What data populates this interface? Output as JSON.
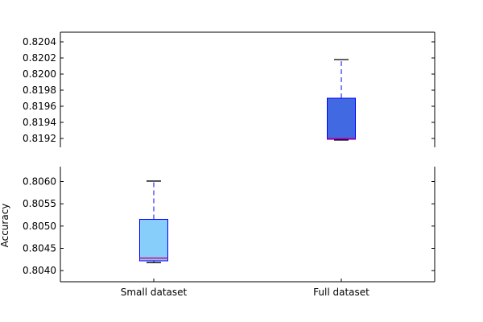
{
  "chart_data": {
    "type": "box",
    "layout": "broken-axis",
    "categories": [
      "Small dataset",
      "Full dataset"
    ],
    "ylabel": "Accuracy",
    "grid": false,
    "panels": [
      {
        "name": "top",
        "ylim": [
          0.81912,
          0.82052
        ],
        "yticks": [
          0.8192,
          0.8194,
          0.8196,
          0.8198,
          0.82,
          0.8202,
          0.8204
        ],
        "ytick_labels": [
          "0.8192",
          "0.8194",
          "0.8196",
          "0.8198",
          "0.8200",
          "0.8202",
          "0.8204"
        ]
      },
      {
        "name": "bottom",
        "ylim": [
          0.80375,
          0.80628
        ],
        "yticks": [
          0.804,
          0.8045,
          0.805,
          0.8055,
          0.806
        ],
        "ytick_labels": [
          "0.8040",
          "0.8045",
          "0.8050",
          "0.8055",
          "0.8060"
        ]
      }
    ],
    "boxes": [
      {
        "category": "Small dataset",
        "panel": "bottom",
        "whisker_low": 0.80418,
        "q1": 0.80422,
        "median": 0.80428,
        "q3": 0.80515,
        "whisker_high": 0.80601,
        "color": "#87cefa"
      },
      {
        "category": "Full dataset",
        "panel": "top",
        "whisker_low": 0.81918,
        "q1": 0.81919,
        "median": 0.8192,
        "q3": 0.8197,
        "whisker_high": 0.82018,
        "color": "#4169e1"
      }
    ],
    "colors": {
      "box_edge": "#0000ff",
      "median": "#e0007f",
      "whisker": "#0000ff",
      "cap": "#000000"
    }
  }
}
